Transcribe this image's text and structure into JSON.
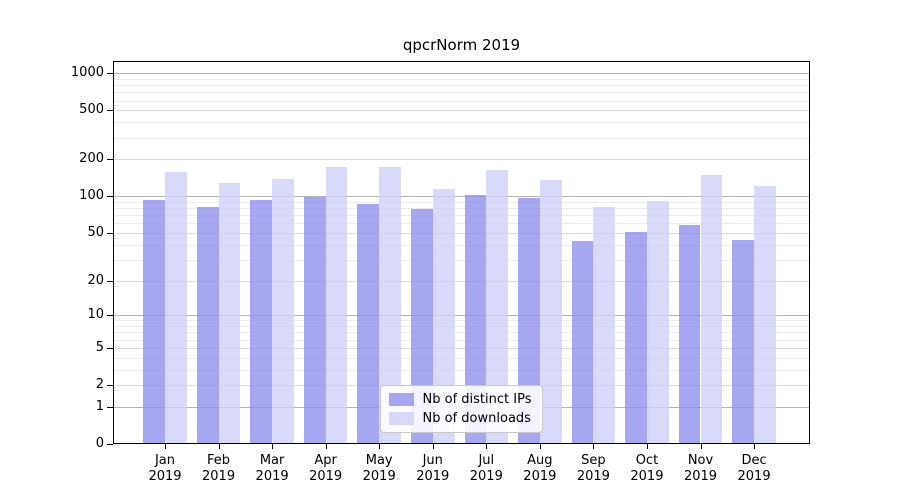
{
  "chart_data": {
    "type": "bar",
    "title": "qpcrNorm 2019",
    "categories": [
      "Jan 2019",
      "Feb 2019",
      "Mar 2019",
      "Apr 2019",
      "May 2019",
      "Jun 2019",
      "Jul 2019",
      "Aug 2019",
      "Sep 2019",
      "Oct 2019",
      "Nov 2019",
      "Dec 2019"
    ],
    "series": [
      {
        "name": "Nb of distinct IPs",
        "color": "#9090ee",
        "values": [
          92,
          80,
          91,
          97,
          85,
          78,
          100,
          95,
          42,
          50,
          57,
          43
        ]
      },
      {
        "name": "Nb of downloads",
        "color": "#cfcff7",
        "values": [
          154,
          126,
          136,
          172,
          170,
          113,
          162,
          133,
          81,
          90,
          148,
          120
        ]
      }
    ],
    "yticks": [
      0,
      1,
      2,
      5,
      10,
      20,
      50,
      100,
      200,
      500,
      1000
    ],
    "yscale": "log10(1+x)",
    "ylim": [
      0,
      1240
    ],
    "grid": true,
    "legend_position": "lower center"
  }
}
